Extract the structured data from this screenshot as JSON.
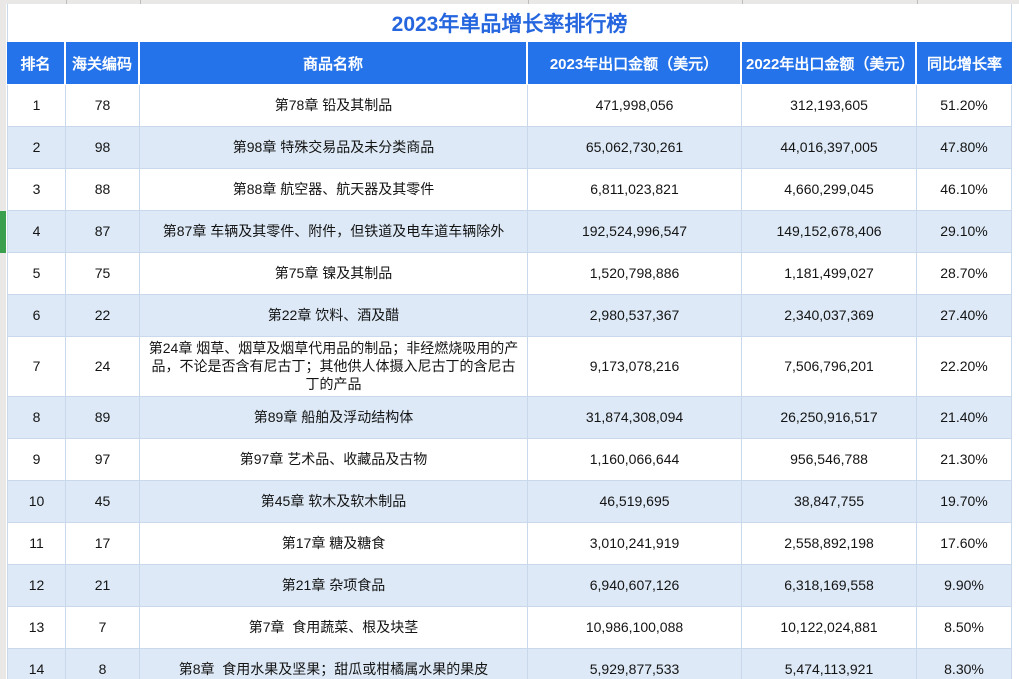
{
  "title": "2023年单品增长率排行榜",
  "table": {
    "columns": [
      "排名",
      "海关编码",
      "商品名称",
      "2023年出口金额（美元）",
      "2022年出口金额（美元）",
      "同比增长率"
    ],
    "rows": [
      {
        "rank": "1",
        "hs_code": "78",
        "name": "第78章 铅及其制品",
        "export_2023": "471,998,056",
        "export_2022": "312,193,605",
        "yoy_growth": "51.20%"
      },
      {
        "rank": "2",
        "hs_code": "98",
        "name": "第98章 特殊交易品及未分类商品",
        "export_2023": "65,062,730,261",
        "export_2022": "44,016,397,005",
        "yoy_growth": "47.80%"
      },
      {
        "rank": "3",
        "hs_code": "88",
        "name": "第88章 航空器、航天器及其零件",
        "export_2023": "6,811,023,821",
        "export_2022": "4,660,299,045",
        "yoy_growth": "46.10%"
      },
      {
        "rank": "4",
        "hs_code": "87",
        "name": "第87章 车辆及其零件、附件，但铁道及电车道车辆除外",
        "export_2023": "192,524,996,547",
        "export_2022": "149,152,678,406",
        "yoy_growth": "29.10%"
      },
      {
        "rank": "5",
        "hs_code": "75",
        "name": "第75章 镍及其制品",
        "export_2023": "1,520,798,886",
        "export_2022": "1,181,499,027",
        "yoy_growth": "28.70%"
      },
      {
        "rank": "6",
        "hs_code": "22",
        "name": "第22章 饮料、酒及醋",
        "export_2023": "2,980,537,367",
        "export_2022": "2,340,037,369",
        "yoy_growth": "27.40%"
      },
      {
        "rank": "7",
        "hs_code": "24",
        "name": "第24章 烟草、烟草及烟草代用品的制品；非经燃烧吸用的产品，不论是否含有尼古丁；其他供人体摄入尼古丁的含尼古丁的产品",
        "export_2023": "9,173,078,216",
        "export_2022": "7,506,796,201",
        "yoy_growth": "22.20%"
      },
      {
        "rank": "8",
        "hs_code": "89",
        "name": "第89章 船舶及浮动结构体",
        "export_2023": "31,874,308,094",
        "export_2022": "26,250,916,517",
        "yoy_growth": "21.40%"
      },
      {
        "rank": "9",
        "hs_code": "97",
        "name": "第97章 艺术品、收藏品及古物",
        "export_2023": "1,160,066,644",
        "export_2022": "956,546,788",
        "yoy_growth": "21.30%"
      },
      {
        "rank": "10",
        "hs_code": "45",
        "name": "第45章 软木及软木制品",
        "export_2023": "46,519,695",
        "export_2022": "38,847,755",
        "yoy_growth": "19.70%"
      },
      {
        "rank": "11",
        "hs_code": "17",
        "name": "第17章 糖及糖食",
        "export_2023": "3,010,241,919",
        "export_2022": "2,558,892,198",
        "yoy_growth": "17.60%"
      },
      {
        "rank": "12",
        "hs_code": "21",
        "name": "第21章 杂项食品",
        "export_2023": "6,940,607,126",
        "export_2022": "6,318,169,558",
        "yoy_growth": "9.90%"
      },
      {
        "rank": "13",
        "hs_code": "7",
        "name": "第7章  食用蔬菜、根及块茎",
        "export_2023": "10,986,100,088",
        "export_2022": "10,122,024,881",
        "yoy_growth": "8.50%"
      },
      {
        "rank": "14",
        "hs_code": "8",
        "name": "第8章  食用水果及坚果；甜瓜或柑橘属水果的果皮",
        "export_2023": "5,929,877,533",
        "export_2022": "5,474,113,921",
        "yoy_growth": "8.30%"
      }
    ],
    "highlighted_rank": "4"
  },
  "colors": {
    "accent_blue": "#2573ea",
    "title_text": "#2566df",
    "alt_row_bg": "#dde9f6",
    "grid_border": "#c9d8ea",
    "row_indicator_green": "#3aa04e",
    "grid_remnant_gray": "#e9e8e6",
    "header_text": "#ffffff"
  }
}
